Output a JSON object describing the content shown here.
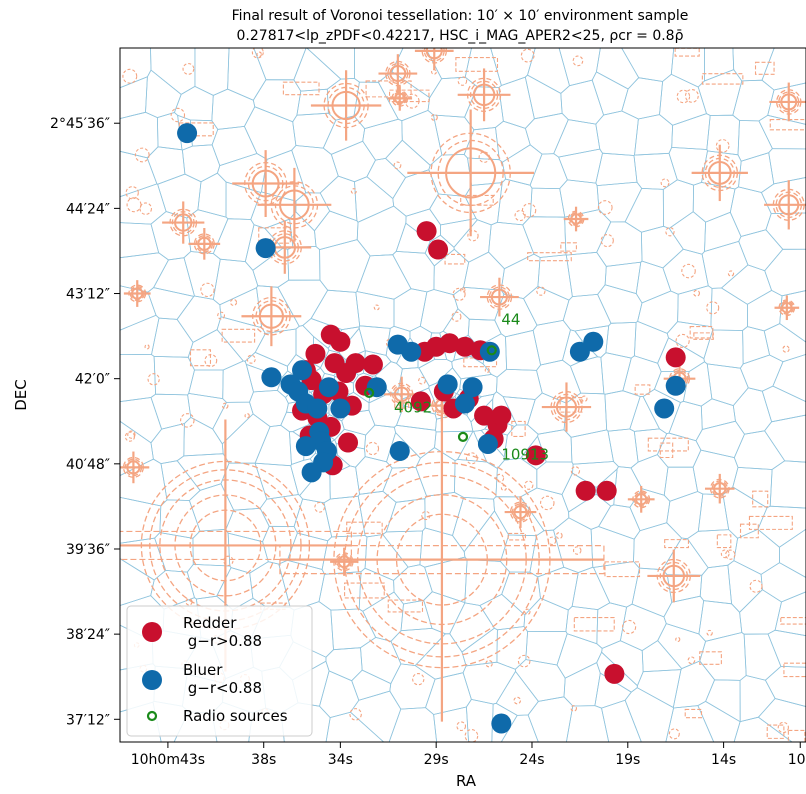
{
  "chart_data": {
    "type": "scatter",
    "title": "Final result of Voronoi tessellation: 10′ × 10′ environment sample",
    "subtitle": "0.27817<lp_zPDF<0.42217, HSC_i_MAG_APER2<25, ρcr = 0.8ρ̄",
    "xlabel": "RA",
    "ylabel": "DEC",
    "x_ticks": [
      {
        "pos": 43,
        "label": "10h0m43s"
      },
      {
        "pos": 38,
        "label": "38s"
      },
      {
        "pos": 34,
        "label": "34s"
      },
      {
        "pos": 29,
        "label": "29s"
      },
      {
        "pos": 24,
        "label": "24s"
      },
      {
        "pos": 19,
        "label": "19s"
      },
      {
        "pos": 14,
        "label": "14s"
      },
      {
        "pos": 10,
        "label": "10s"
      }
    ],
    "y_ticks": [
      {
        "pos": 5.6,
        "label": "2°45′36″"
      },
      {
        "pos": 4.4,
        "label": "44′24″"
      },
      {
        "pos": 3.2,
        "label": "43′12″"
      },
      {
        "pos": 2.0,
        "label": "42′0″"
      },
      {
        "pos": 0.8,
        "label": "40′48″"
      },
      {
        "pos": -0.4,
        "label": "39′36″"
      },
      {
        "pos": -1.6,
        "label": "38′24″"
      },
      {
        "pos": -2.8,
        "label": "37′12″"
      }
    ],
    "xlim": [
      45.5,
      9.7
    ],
    "ylim": [
      -3.12,
      6.66
    ],
    "grid": false,
    "legend_position": "lower-left",
    "series": [
      {
        "name": "Redder g−r>0.88",
        "color": "#c8102e",
        "points": [
          [
            34.5,
            2.62
          ],
          [
            34.0,
            2.52
          ],
          [
            35.3,
            2.35
          ],
          [
            34.3,
            2.22
          ],
          [
            35.8,
            2.12
          ],
          [
            33.7,
            2.08
          ],
          [
            33.2,
            2.22
          ],
          [
            35.5,
            1.98
          ],
          [
            34.9,
            1.78
          ],
          [
            34.1,
            1.82
          ],
          [
            33.4,
            1.62
          ],
          [
            32.7,
            1.9
          ],
          [
            32.3,
            2.2
          ],
          [
            36.0,
            1.55
          ],
          [
            35.2,
            1.45
          ],
          [
            34.5,
            1.32
          ],
          [
            33.6,
            1.1
          ],
          [
            34.4,
            0.78
          ],
          [
            35.6,
            1.2
          ],
          [
            28.3,
            2.5
          ],
          [
            29.0,
            2.45
          ],
          [
            29.6,
            2.38
          ],
          [
            27.5,
            2.45
          ],
          [
            26.7,
            2.4
          ],
          [
            29.8,
            1.68
          ],
          [
            28.6,
            1.82
          ],
          [
            28.1,
            1.58
          ],
          [
            27.3,
            1.72
          ],
          [
            26.5,
            1.48
          ],
          [
            25.8,
            1.35
          ],
          [
            25.6,
            1.48
          ],
          [
            26.0,
            1.15
          ],
          [
            29.5,
            4.08
          ],
          [
            28.9,
            3.82
          ],
          [
            23.8,
            0.92
          ],
          [
            21.2,
            0.42
          ],
          [
            20.1,
            0.42
          ],
          [
            16.5,
            2.3
          ],
          [
            19.7,
            -2.16
          ]
        ]
      },
      {
        "name": "Bluer g−r<0.88",
        "color": "#0f6aaa",
        "points": [
          [
            42.0,
            5.46
          ],
          [
            37.9,
            3.84
          ],
          [
            37.6,
            2.02
          ],
          [
            36.6,
            1.92
          ],
          [
            36.2,
            1.82
          ],
          [
            35.8,
            1.65
          ],
          [
            34.6,
            1.88
          ],
          [
            34.0,
            1.58
          ],
          [
            35.2,
            1.58
          ],
          [
            35.1,
            1.25
          ],
          [
            35.0,
            1.12
          ],
          [
            34.7,
            0.98
          ],
          [
            34.9,
            0.82
          ],
          [
            35.8,
            1.05
          ],
          [
            35.5,
            0.68
          ],
          [
            32.1,
            1.88
          ],
          [
            31.0,
            2.48
          ],
          [
            30.3,
            2.38
          ],
          [
            27.1,
            1.88
          ],
          [
            27.5,
            1.65
          ],
          [
            28.4,
            1.92
          ],
          [
            26.2,
            2.38
          ],
          [
            26.3,
            1.08
          ],
          [
            30.9,
            0.98
          ],
          [
            21.5,
            2.38
          ],
          [
            20.8,
            2.52
          ],
          [
            16.5,
            1.9
          ],
          [
            17.1,
            1.58
          ],
          [
            25.6,
            -2.86
          ],
          [
            36.0,
            2.12
          ]
        ]
      },
      {
        "name": "Radio sources",
        "color": "#1a8a1a",
        "points": [
          [
            26.1,
            2.4
          ],
          [
            32.5,
            1.8
          ],
          [
            27.6,
            1.18
          ]
        ]
      }
    ],
    "annotations": [
      {
        "text": "44",
        "x": 25.6,
        "y": 2.76
      },
      {
        "text": "4092",
        "x": 31.2,
        "y": 1.52
      },
      {
        "text": "10913",
        "x": 25.6,
        "y": 0.86
      }
    ]
  },
  "legend": {
    "redder_line1": "Redder",
    "redder_line2": " g−r>0.88",
    "bluer_line1": "Bluer",
    "bluer_line2": " g−r<0.88",
    "radio": "Radio sources"
  },
  "colors": {
    "voronoi": "#92c5de",
    "mask": "#f4a582",
    "red": "#c8102e",
    "blue": "#0f6aaa",
    "radio": "#1a8a1a"
  }
}
